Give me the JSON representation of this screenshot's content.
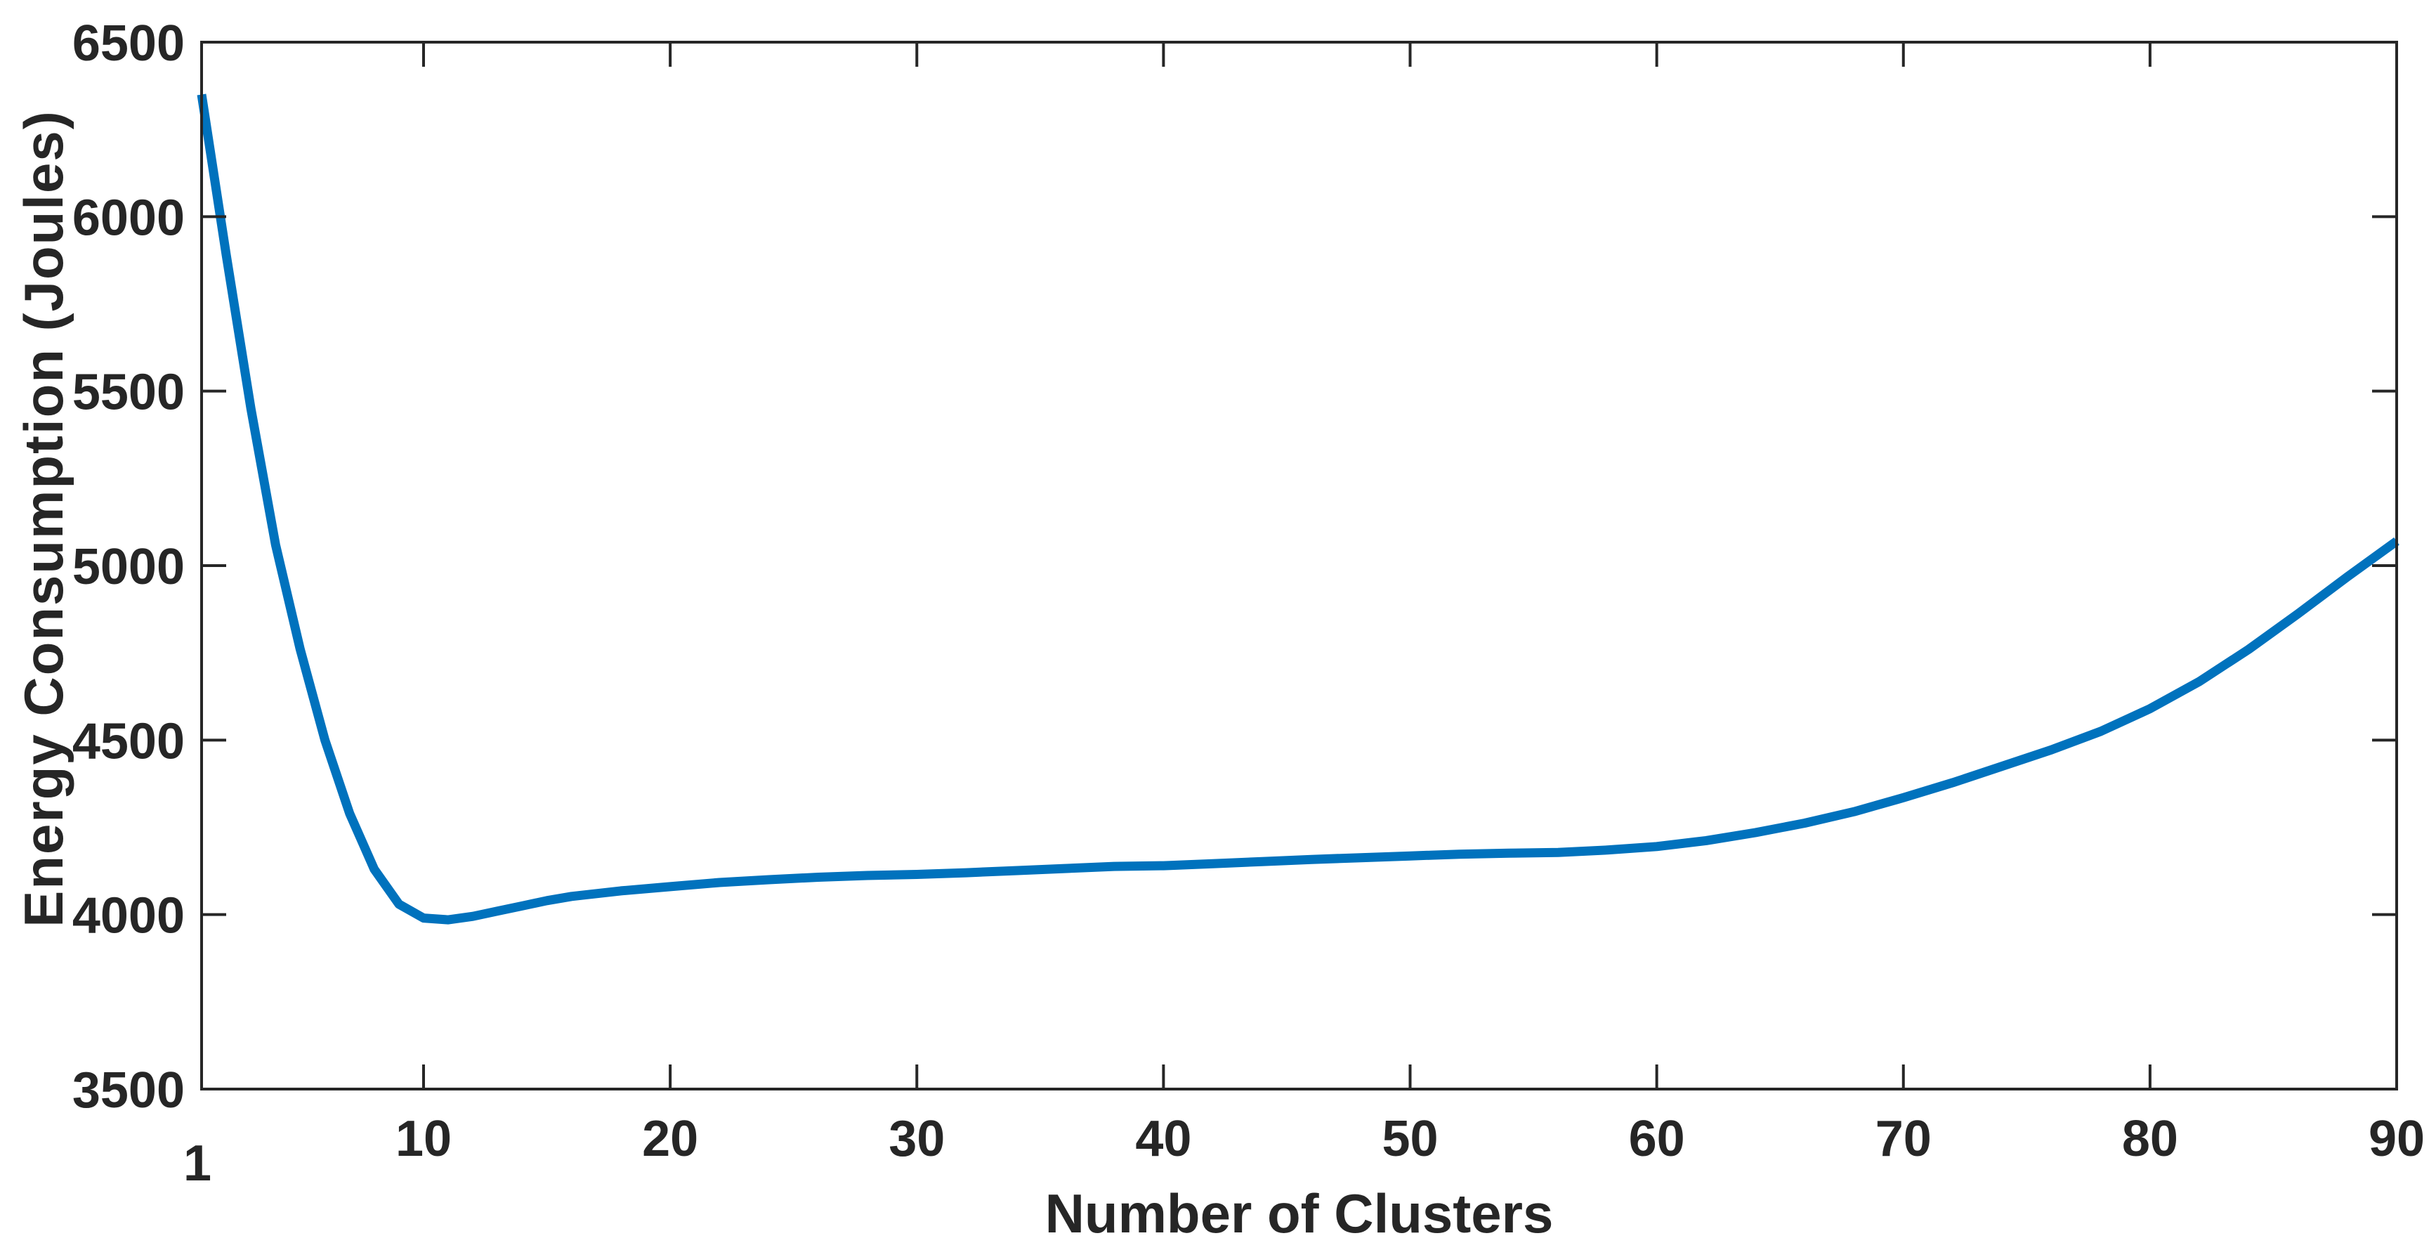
{
  "figure": {
    "background_color": "#ffffff"
  },
  "chart_data": {
    "type": "line",
    "title": "",
    "xlabel": "Number of Clusters",
    "ylabel": "Energy Consumption (Joules)",
    "xlim": [
      1,
      90
    ],
    "ylim": [
      3500,
      6500
    ],
    "x_ticks": [
      10,
      20,
      30,
      40,
      50,
      60,
      70,
      80,
      90
    ],
    "origin_tick_label": "1",
    "y_ticks": [
      3500,
      4000,
      4500,
      5000,
      5500,
      6000,
      6500
    ],
    "grid": false,
    "legend_position": "none",
    "box": true,
    "tick_direction": "in",
    "line_color": "#0072BD",
    "line_width": 13,
    "axis_color": "#262626",
    "points": [
      [
        1,
        6350
      ],
      [
        2,
        5890
      ],
      [
        3,
        5450
      ],
      [
        4,
        5060
      ],
      [
        5,
        4760
      ],
      [
        6,
        4500
      ],
      [
        7,
        4290
      ],
      [
        8,
        4130
      ],
      [
        9,
        4030
      ],
      [
        10,
        3990
      ],
      [
        11,
        3985
      ],
      [
        12,
        3995
      ],
      [
        13,
        4010
      ],
      [
        14,
        4025
      ],
      [
        15,
        4040
      ],
      [
        16,
        4052
      ],
      [
        18,
        4068
      ],
      [
        20,
        4080
      ],
      [
        22,
        4092
      ],
      [
        24,
        4100
      ],
      [
        26,
        4107
      ],
      [
        28,
        4112
      ],
      [
        30,
        4115
      ],
      [
        32,
        4120
      ],
      [
        34,
        4126
      ],
      [
        36,
        4132
      ],
      [
        38,
        4138
      ],
      [
        40,
        4140
      ],
      [
        42,
        4146
      ],
      [
        44,
        4152
      ],
      [
        46,
        4158
      ],
      [
        48,
        4163
      ],
      [
        50,
        4168
      ],
      [
        52,
        4173
      ],
      [
        54,
        4176
      ],
      [
        56,
        4178
      ],
      [
        58,
        4185
      ],
      [
        60,
        4195
      ],
      [
        62,
        4212
      ],
      [
        64,
        4235
      ],
      [
        66,
        4262
      ],
      [
        68,
        4295
      ],
      [
        70,
        4335
      ],
      [
        72,
        4378
      ],
      [
        74,
        4425
      ],
      [
        76,
        4472
      ],
      [
        78,
        4525
      ],
      [
        80,
        4590
      ],
      [
        82,
        4668
      ],
      [
        84,
        4760
      ],
      [
        86,
        4862
      ],
      [
        88,
        4968
      ],
      [
        90,
        5070
      ]
    ]
  }
}
